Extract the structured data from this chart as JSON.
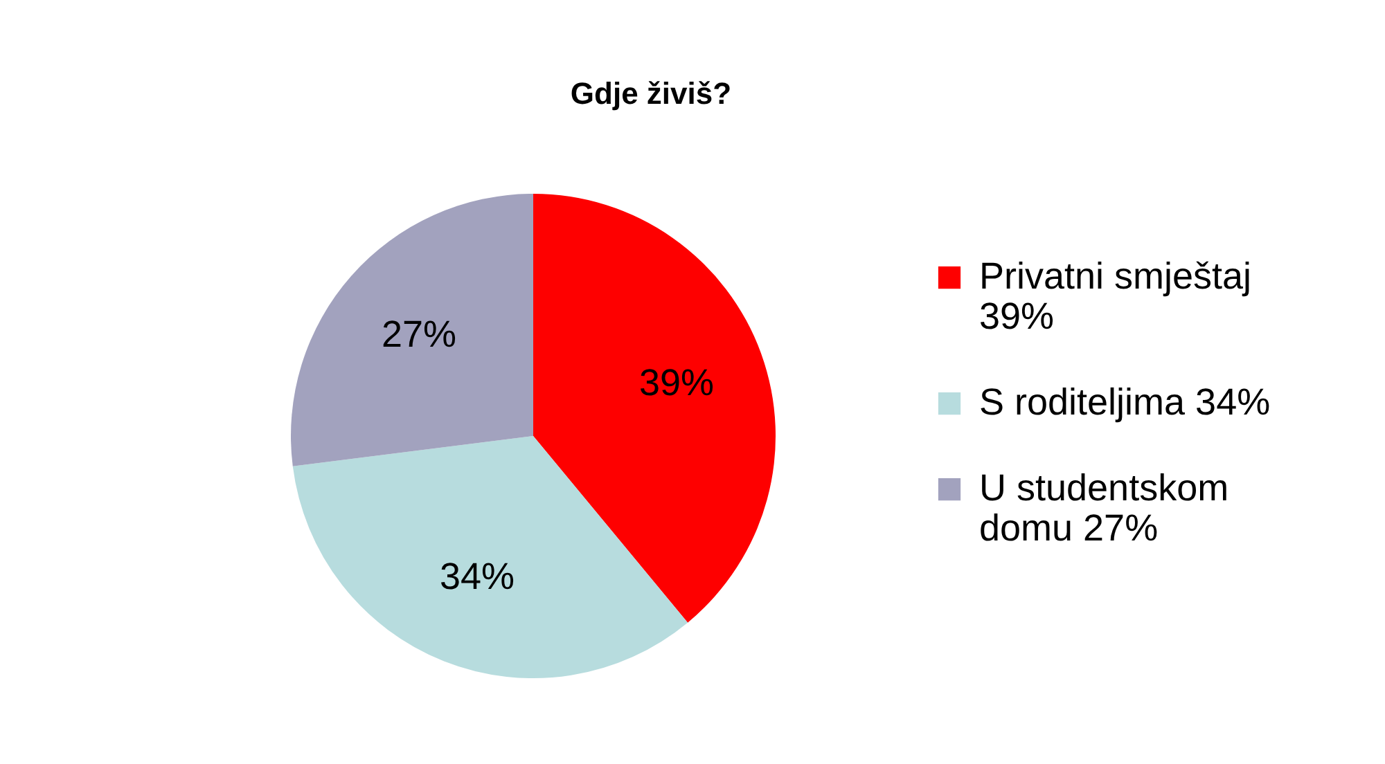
{
  "chart_data": {
    "type": "pie",
    "title": "Gdje živiš?",
    "categories": [
      "Privatni smještaj 39%",
      "S roditeljima 34%",
      "U studentskom domu 27%"
    ],
    "values": [
      39,
      34,
      27
    ],
    "colors": [
      "#fe0000",
      "#b7dcde",
      "#a2a2be"
    ],
    "value_labels": [
      "39%",
      "34%",
      "27%"
    ],
    "legend": "right"
  }
}
